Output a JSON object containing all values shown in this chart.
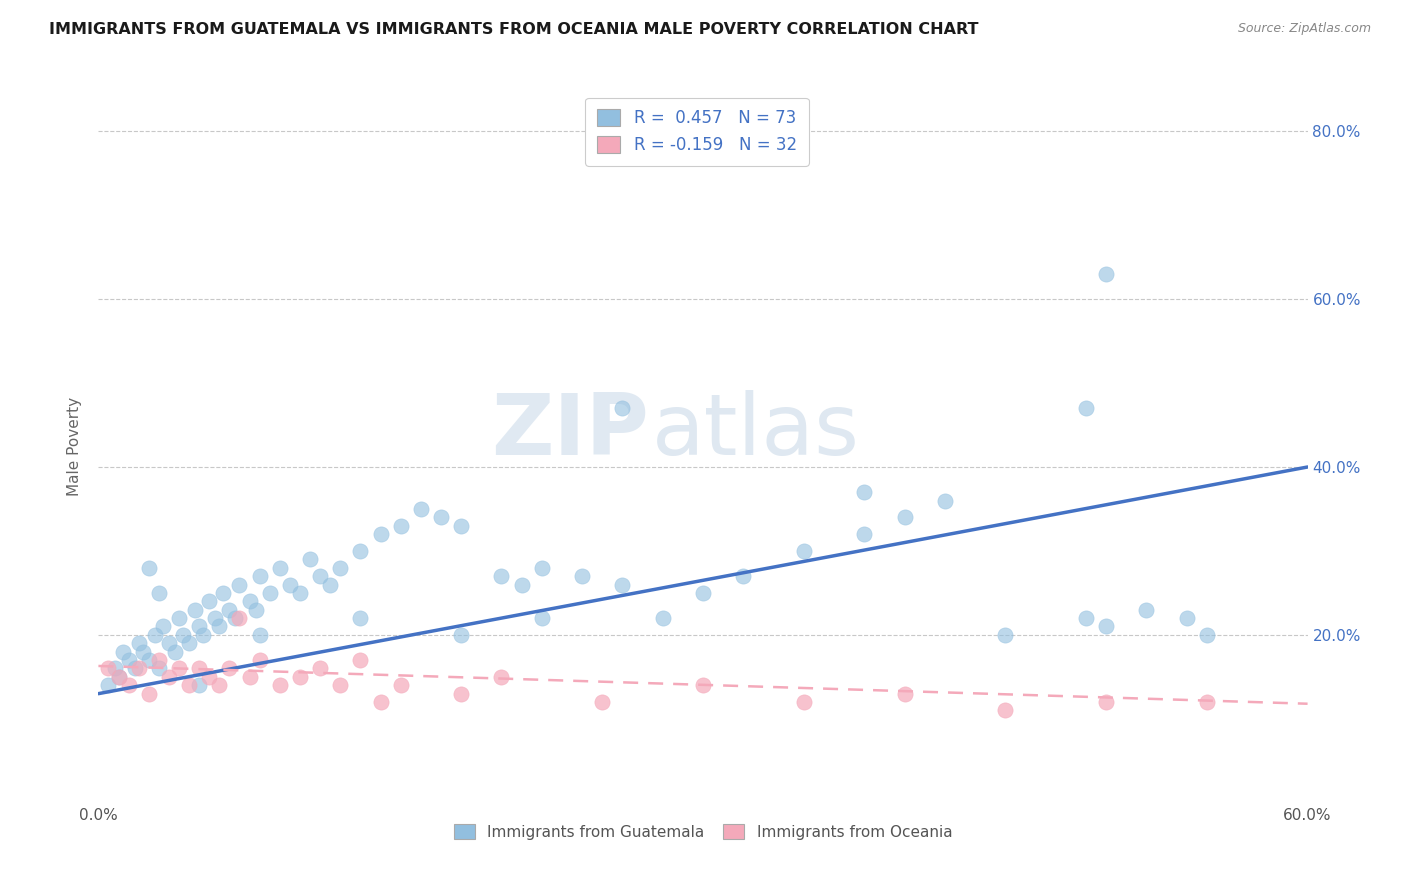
{
  "title": "IMMIGRANTS FROM GUATEMALA VS IMMIGRANTS FROM OCEANIA MALE POVERTY CORRELATION CHART",
  "source": "Source: ZipAtlas.com",
  "ylabel": "Male Poverty",
  "legend_label1": "Immigrants from Guatemala",
  "legend_label2": "Immigrants from Oceania",
  "R1": 0.457,
  "N1": 73,
  "R2": -0.159,
  "N2": 32,
  "xlim": [
    0.0,
    0.6
  ],
  "ylim": [
    0.0,
    0.85
  ],
  "color1": "#92bfdf",
  "color2": "#f4a9ba",
  "line_color1": "#4472c4",
  "line_color2": "#f4a9ba",
  "tick_color": "#4472c4",
  "background_color": "#ffffff",
  "scatter1_x": [
    0.005,
    0.008,
    0.01,
    0.012,
    0.015,
    0.018,
    0.02,
    0.022,
    0.025,
    0.028,
    0.03,
    0.032,
    0.035,
    0.038,
    0.04,
    0.042,
    0.045,
    0.048,
    0.05,
    0.052,
    0.055,
    0.058,
    0.06,
    0.062,
    0.065,
    0.068,
    0.07,
    0.075,
    0.078,
    0.08,
    0.085,
    0.09,
    0.095,
    0.1,
    0.105,
    0.11,
    0.115,
    0.12,
    0.13,
    0.14,
    0.15,
    0.16,
    0.17,
    0.18,
    0.2,
    0.21,
    0.22,
    0.24,
    0.26,
    0.28,
    0.3,
    0.32,
    0.35,
    0.38,
    0.4,
    0.42,
    0.45,
    0.49,
    0.5,
    0.52,
    0.54,
    0.55,
    0.49,
    0.38,
    0.26,
    0.22,
    0.18,
    0.13,
    0.08,
    0.05,
    0.03,
    0.025,
    0.5
  ],
  "scatter1_y": [
    0.14,
    0.16,
    0.15,
    0.18,
    0.17,
    0.16,
    0.19,
    0.18,
    0.17,
    0.2,
    0.16,
    0.21,
    0.19,
    0.18,
    0.22,
    0.2,
    0.19,
    0.23,
    0.21,
    0.2,
    0.24,
    0.22,
    0.21,
    0.25,
    0.23,
    0.22,
    0.26,
    0.24,
    0.23,
    0.27,
    0.25,
    0.28,
    0.26,
    0.25,
    0.29,
    0.27,
    0.26,
    0.28,
    0.3,
    0.32,
    0.33,
    0.35,
    0.34,
    0.33,
    0.27,
    0.26,
    0.28,
    0.27,
    0.26,
    0.22,
    0.25,
    0.27,
    0.3,
    0.32,
    0.34,
    0.36,
    0.2,
    0.22,
    0.21,
    0.23,
    0.22,
    0.2,
    0.47,
    0.37,
    0.47,
    0.22,
    0.2,
    0.22,
    0.2,
    0.14,
    0.25,
    0.28,
    0.63
  ],
  "scatter2_x": [
    0.005,
    0.01,
    0.015,
    0.02,
    0.025,
    0.03,
    0.035,
    0.04,
    0.045,
    0.05,
    0.055,
    0.06,
    0.065,
    0.07,
    0.075,
    0.08,
    0.09,
    0.1,
    0.11,
    0.12,
    0.13,
    0.14,
    0.15,
    0.18,
    0.2,
    0.25,
    0.3,
    0.35,
    0.4,
    0.45,
    0.5,
    0.55
  ],
  "scatter2_y": [
    0.16,
    0.15,
    0.14,
    0.16,
    0.13,
    0.17,
    0.15,
    0.16,
    0.14,
    0.16,
    0.15,
    0.14,
    0.16,
    0.22,
    0.15,
    0.17,
    0.14,
    0.15,
    0.16,
    0.14,
    0.17,
    0.12,
    0.14,
    0.13,
    0.15,
    0.12,
    0.14,
    0.12,
    0.13,
    0.11,
    0.12,
    0.12
  ],
  "line1_x0": 0.0,
  "line1_x1": 0.6,
  "line1_y0": 0.13,
  "line1_y1": 0.4,
  "line2_x0": 0.0,
  "line2_x1": 0.6,
  "line2_y0": 0.163,
  "line2_y1": 0.118
}
